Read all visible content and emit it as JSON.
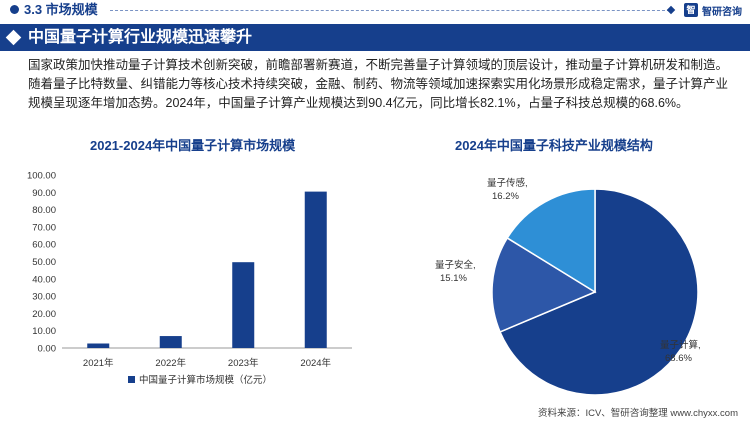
{
  "section": {
    "label": "3.3 市场规模"
  },
  "brand": {
    "logo_glyph": "智",
    "name": "智研咨询"
  },
  "banner": {
    "title": "中国量子计算行业规模迅速攀升"
  },
  "body_text": "国家政策加快推动量子计算技术创新突破，前瞻部署新赛道，不断完善量子计算领域的顶层设计，推动量子计算机研发和制造。随着量子比特数量、纠错能力等核心技术持续突破，金融、制药、物流等领域加速探索实用化场景形成稳定需求，量子计算产业规模呈现逐年增加态势。2024年，中国量子计算产业规模达到90.4亿元，同比增长82.1%，占量子科技总规模的68.6%。",
  "source": "资料来源：ICV、智研咨询整理    www.chyxx.com",
  "chart_data": [
    {
      "type": "bar",
      "title": "2021-2024年中国量子计算市场规模",
      "categories": [
        "2021年",
        "2022年",
        "2023年",
        "2024年"
      ],
      "series": [
        {
          "name": "中国量子计算市场规模（亿元）",
          "values": [
            2.6,
            6.9,
            49.6,
            90.4
          ],
          "color": "#163f8c"
        }
      ],
      "ylim": [
        0,
        100
      ],
      "yticks": [
        "0.00",
        "10.00",
        "20.00",
        "30.00",
        "40.00",
        "50.00",
        "60.00",
        "70.00",
        "80.00",
        "90.00",
        "100.00"
      ],
      "grid": false,
      "legend": "bottom"
    },
    {
      "type": "pie",
      "title": "2024年中国量子科技产业规模结构",
      "slices": [
        {
          "name": "量子计算",
          "value": 68.6,
          "label": "68.6%",
          "color": "#163f8c"
        },
        {
          "name": "量子安全",
          "value": 15.1,
          "label": "15.1%",
          "color": "#2d57a8"
        },
        {
          "name": "量子传感",
          "value": 16.2,
          "label": "16.2%",
          "color": "#2e8fd6"
        }
      ]
    }
  ]
}
